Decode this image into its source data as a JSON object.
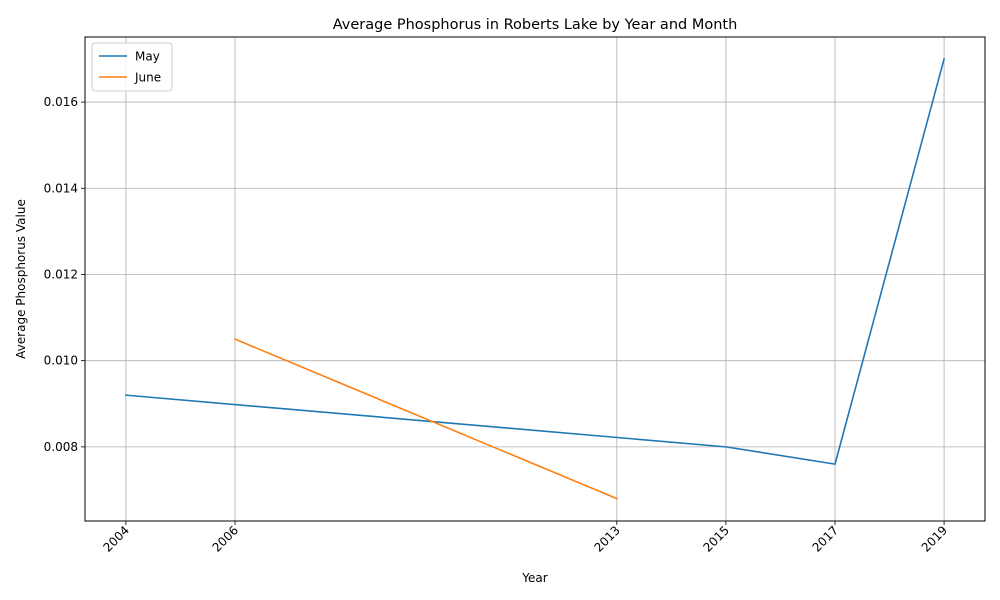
{
  "chart_data": {
    "type": "line",
    "title": "Average Phosphorus in Roberts Lake by Year and Month",
    "xlabel": "Year",
    "ylabel": "Average Phosphorus Value",
    "x_ticks": [
      2004,
      2006,
      2013,
      2015,
      2017,
      2019
    ],
    "y_ticks": [
      0.008,
      0.01,
      0.012,
      0.014,
      0.016
    ],
    "y_tick_labels": [
      "0.008",
      "0.010",
      "0.012",
      "0.014",
      "0.016"
    ],
    "xlim": [
      2003.25,
      2019.75
    ],
    "ylim": [
      0.00628,
      0.01751
    ],
    "grid": true,
    "legend_position": "upper-left",
    "series": [
      {
        "name": "May",
        "color": "#1f77b4",
        "x": [
          2004,
          2015,
          2017,
          2019
        ],
        "y": [
          0.0092,
          0.008,
          0.0076,
          0.017
        ]
      },
      {
        "name": "June",
        "color": "#ff7f0e",
        "x": [
          2006,
          2013
        ],
        "y": [
          0.0105,
          0.0068
        ]
      }
    ]
  }
}
